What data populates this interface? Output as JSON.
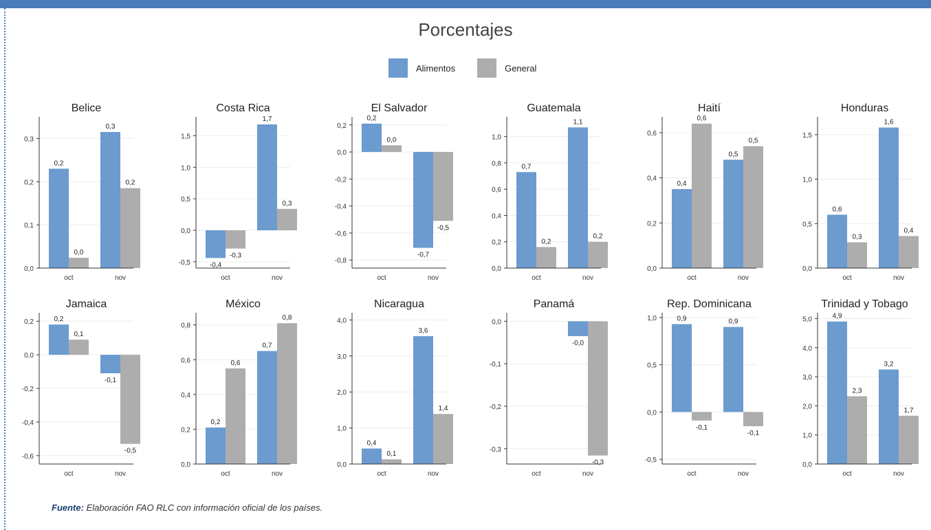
{
  "title": "Porcentajes",
  "legend": {
    "alimentos": "Alimentos",
    "general": "General"
  },
  "colors": {
    "alimentos": "#6b9bcf",
    "general": "#adadad",
    "topbar": "#4a7ab8"
  },
  "source": {
    "label": "Fuente:",
    "text": " Elaboración FAO RLC con información oficial de los países."
  },
  "chart_data": [
    {
      "type": "bar",
      "title": "Belice",
      "categories": [
        "oct",
        "nov"
      ],
      "series": [
        {
          "name": "Alimentos",
          "values": [
            0.23,
            0.315
          ],
          "labels": [
            "0,2",
            "0,3"
          ]
        },
        {
          "name": "General",
          "values": [
            0.024,
            0.185
          ],
          "labels": [
            "0,0",
            "0,2"
          ]
        }
      ],
      "ylim": [
        0,
        0.35
      ],
      "yticks": [
        0,
        0.1,
        0.2,
        0.3
      ],
      "yticklabels": [
        "0,0",
        "0,1",
        "0,2",
        "0,3"
      ]
    },
    {
      "type": "bar",
      "title": "Costa Rica",
      "categories": [
        "oct",
        "nov"
      ],
      "series": [
        {
          "name": "Alimentos",
          "values": [
            -0.44,
            1.68
          ],
          "labels": [
            "-0,4",
            "1,7"
          ]
        },
        {
          "name": "General",
          "values": [
            -0.29,
            0.34
          ],
          "labels": [
            "-0,3",
            "0,3"
          ]
        }
      ],
      "ylim": [
        -0.6,
        1.8
      ],
      "yticks": [
        -0.5,
        0,
        0.5,
        1.0,
        1.5
      ],
      "yticklabels": [
        "-0,5",
        "0,0",
        "0,5",
        "1,0",
        "1,5"
      ]
    },
    {
      "type": "bar",
      "title": "El Salvador",
      "categories": [
        "oct",
        "nov"
      ],
      "series": [
        {
          "name": "Alimentos",
          "values": [
            0.21,
            -0.71
          ],
          "labels": [
            "0,2",
            "-0,7"
          ]
        },
        {
          "name": "General",
          "values": [
            0.05,
            -0.51
          ],
          "labels": [
            "0,0",
            "-0,5"
          ]
        }
      ],
      "ylim": [
        -0.86,
        0.26
      ],
      "yticks": [
        -0.8,
        -0.6,
        -0.4,
        -0.2,
        0,
        0.2
      ],
      "yticklabels": [
        "-0,8",
        "-0,6",
        "-0,4",
        "-0,2",
        "0,0",
        "0,2"
      ]
    },
    {
      "type": "bar",
      "title": "Guatemala",
      "categories": [
        "oct",
        "nov"
      ],
      "series": [
        {
          "name": "Alimentos",
          "values": [
            0.73,
            1.07
          ],
          "labels": [
            "0,7",
            "1,1"
          ]
        },
        {
          "name": "General",
          "values": [
            0.16,
            0.2
          ],
          "labels": [
            "0,2",
            "0,2"
          ]
        }
      ],
      "ylim": [
        0,
        1.15
      ],
      "yticks": [
        0,
        0.2,
        0.4,
        0.6,
        0.8,
        1.0
      ],
      "yticklabels": [
        "0,0",
        "0,2",
        "0,4",
        "0,6",
        "0,8",
        "1,0"
      ]
    },
    {
      "type": "bar",
      "title": "Haití",
      "categories": [
        "oct",
        "nov"
      ],
      "series": [
        {
          "name": "Alimentos",
          "values": [
            0.35,
            0.48
          ],
          "labels": [
            "0,4",
            "0,5"
          ]
        },
        {
          "name": "General",
          "values": [
            0.64,
            0.54
          ],
          "labels": [
            "0,6",
            "0,5"
          ]
        }
      ],
      "ylim": [
        0,
        0.67
      ],
      "yticks": [
        0,
        0.2,
        0.4,
        0.6
      ],
      "yticklabels": [
        "0,0",
        "0,2",
        "0,4",
        "0,6"
      ]
    },
    {
      "type": "bar",
      "title": "Honduras",
      "categories": [
        "oct",
        "nov"
      ],
      "series": [
        {
          "name": "Alimentos",
          "values": [
            0.6,
            1.58
          ],
          "labels": [
            "0,6",
            "1,6"
          ]
        },
        {
          "name": "General",
          "values": [
            0.29,
            0.36
          ],
          "labels": [
            "0,3",
            "0,4"
          ]
        }
      ],
      "ylim": [
        0,
        1.7
      ],
      "yticks": [
        0,
        0.5,
        1.0,
        1.5
      ],
      "yticklabels": [
        "0,0",
        "0,5",
        "1,0",
        "1,5"
      ]
    },
    {
      "type": "bar",
      "title": "Jamaica",
      "categories": [
        "oct",
        "nov"
      ],
      "series": [
        {
          "name": "Alimentos",
          "values": [
            0.18,
            -0.11
          ],
          "labels": [
            "0,2",
            "-0,1"
          ]
        },
        {
          "name": "General",
          "values": [
            0.09,
            -0.53
          ],
          "labels": [
            "0,1",
            "-0,5"
          ]
        }
      ],
      "ylim": [
        -0.65,
        0.25
      ],
      "yticks": [
        -0.6,
        -0.4,
        -0.2,
        0,
        0.2
      ],
      "yticklabels": [
        "-0,6",
        "-0,4",
        "-0,2",
        "0,0",
        "0,2"
      ]
    },
    {
      "type": "bar",
      "title": "México",
      "categories": [
        "oct",
        "nov"
      ],
      "series": [
        {
          "name": "Alimentos",
          "values": [
            0.21,
            0.65
          ],
          "labels": [
            "0,2",
            "0,7"
          ]
        },
        {
          "name": "General",
          "values": [
            0.55,
            0.81
          ],
          "labels": [
            "0,6",
            "0,8"
          ]
        }
      ],
      "ylim": [
        0,
        0.87
      ],
      "yticks": [
        0,
        0.2,
        0.4,
        0.6,
        0.8
      ],
      "yticklabels": [
        "0,0",
        "0,2",
        "0,4",
        "0,6",
        "0,8"
      ]
    },
    {
      "type": "bar",
      "title": "Nicaragua",
      "categories": [
        "oct",
        "nov"
      ],
      "series": [
        {
          "name": "Alimentos",
          "values": [
            0.43,
            3.55
          ],
          "labels": [
            "0,4",
            "3,6"
          ]
        },
        {
          "name": "General",
          "values": [
            0.13,
            1.39
          ],
          "labels": [
            "0,1",
            "1,4"
          ]
        }
      ],
      "ylim": [
        0,
        4.2
      ],
      "yticks": [
        0,
        1.0,
        2.0,
        3.0,
        4.0
      ],
      "yticklabels": [
        "0,0",
        "1,0",
        "2,0",
        "3,0",
        "4,0"
      ]
    },
    {
      "type": "bar",
      "title": "Panamá",
      "categories": [
        "oct",
        "nov"
      ],
      "series": [
        {
          "name": "Alimentos",
          "values": [
            0,
            -0.035
          ],
          "labels": [
            "",
            "-0,0"
          ]
        },
        {
          "name": "General",
          "values": [
            0,
            -0.316
          ],
          "labels": [
            "",
            "-0,3"
          ]
        }
      ],
      "ylim": [
        -0.336,
        0.02
      ],
      "yticks": [
        -0.3,
        -0.2,
        -0.1,
        0
      ],
      "yticklabels": [
        "-0,3",
        "-0,2",
        "-0,1",
        "0,0"
      ]
    },
    {
      "type": "bar",
      "title": "Rep. Dominicana",
      "categories": [
        "oct",
        "nov"
      ],
      "series": [
        {
          "name": "Alimentos",
          "values": [
            0.93,
            0.9
          ],
          "labels": [
            "0,9",
            "0,9"
          ]
        },
        {
          "name": "General",
          "values": [
            -0.09,
            -0.15
          ],
          "labels": [
            "-0,1",
            "-0,1"
          ]
        }
      ],
      "ylim": [
        -0.55,
        1.05
      ],
      "yticks": [
        -0.5,
        0,
        0.5,
        1.0
      ],
      "yticklabels": [
        "-0,5",
        "0,0",
        "0,5",
        "1,0"
      ]
    },
    {
      "type": "bar",
      "title": "Trinidad y Tobago",
      "categories": [
        "oct",
        "nov"
      ],
      "series": [
        {
          "name": "Alimentos",
          "values": [
            4.9,
            3.25
          ],
          "labels": [
            "4,9",
            "3,2"
          ]
        },
        {
          "name": "General",
          "values": [
            2.33,
            1.66
          ],
          "labels": [
            "2,3",
            "1,7"
          ]
        }
      ],
      "ylim": [
        0,
        5.2
      ],
      "yticks": [
        0,
        1.0,
        2.0,
        3.0,
        4.0,
        5.0
      ],
      "yticklabels": [
        "0,0",
        "1,0",
        "2,0",
        "3,0",
        "4,0",
        "5,0"
      ]
    }
  ]
}
